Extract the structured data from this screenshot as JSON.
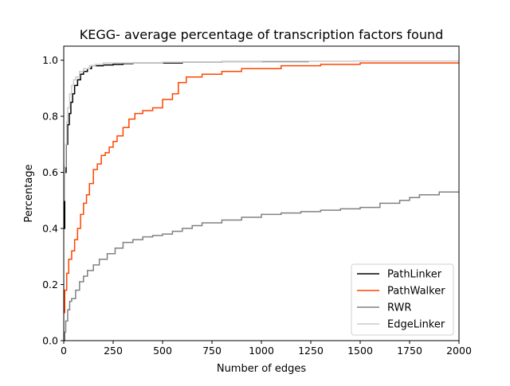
{
  "chart_data": {
    "type": "line",
    "title": "KEGG- average percentage of transcription factors found",
    "xlabel": "Number of edges",
    "ylabel": "Percentage",
    "xlim": [
      0,
      2000
    ],
    "ylim": [
      0,
      1.05
    ],
    "xticks": [
      0,
      250,
      500,
      750,
      1000,
      1250,
      1500,
      1750,
      2000
    ],
    "xtick_labels": [
      "0",
      "250",
      "500",
      "750",
      "1000",
      "1250",
      "1500",
      "1750",
      "2000"
    ],
    "yticks": [
      0.0,
      0.2,
      0.4,
      0.6,
      0.8,
      1.0
    ],
    "ytick_labels": [
      "0.0",
      "0.2",
      "0.4",
      "0.6",
      "0.8",
      "1.0"
    ],
    "grid": false,
    "legend_position": "lower-right",
    "series": [
      {
        "name": "PathLinker",
        "color": "#000000",
        "x": [
          0,
          5,
          12,
          20,
          28,
          36,
          45,
          55,
          70,
          85,
          100,
          120,
          140,
          160,
          200,
          250,
          300,
          350,
          450,
          600,
          800,
          1000,
          1240
        ],
        "y": [
          0.4,
          0.6,
          0.7,
          0.77,
          0.81,
          0.85,
          0.88,
          0.91,
          0.93,
          0.95,
          0.96,
          0.97,
          0.98,
          0.98,
          0.983,
          0.985,
          0.988,
          0.99,
          0.99,
          0.993,
          0.995,
          0.995,
          0.995
        ]
      },
      {
        "name": "PathWalker",
        "color": "#ff4500",
        "x": [
          0,
          5,
          15,
          25,
          40,
          55,
          70,
          85,
          100,
          115,
          130,
          150,
          170,
          190,
          210,
          230,
          250,
          270,
          300,
          330,
          360,
          400,
          450,
          500,
          550,
          580,
          620,
          700,
          800,
          900,
          1000,
          1100,
          1200,
          1300,
          1500,
          1700,
          2000
        ],
        "y": [
          0.1,
          0.18,
          0.24,
          0.29,
          0.32,
          0.36,
          0.4,
          0.45,
          0.49,
          0.52,
          0.56,
          0.61,
          0.63,
          0.66,
          0.67,
          0.69,
          0.71,
          0.73,
          0.76,
          0.79,
          0.81,
          0.82,
          0.83,
          0.86,
          0.88,
          0.92,
          0.94,
          0.95,
          0.96,
          0.97,
          0.97,
          0.98,
          0.98,
          0.985,
          0.99,
          0.99,
          0.99
        ]
      },
      {
        "name": "RWR",
        "color": "#808080",
        "x": [
          0,
          5,
          10,
          20,
          30,
          40,
          60,
          80,
          100,
          120,
          150,
          180,
          220,
          260,
          300,
          350,
          400,
          450,
          500,
          550,
          600,
          650,
          700,
          750,
          800,
          900,
          1000,
          1100,
          1200,
          1300,
          1400,
          1500,
          1600,
          1700,
          1750,
          1800,
          1900,
          2000
        ],
        "y": [
          0.0,
          0.03,
          0.07,
          0.11,
          0.14,
          0.15,
          0.18,
          0.21,
          0.23,
          0.25,
          0.27,
          0.29,
          0.31,
          0.33,
          0.35,
          0.36,
          0.37,
          0.375,
          0.38,
          0.39,
          0.4,
          0.41,
          0.42,
          0.42,
          0.43,
          0.44,
          0.45,
          0.455,
          0.46,
          0.465,
          0.47,
          0.475,
          0.49,
          0.5,
          0.51,
          0.52,
          0.53,
          0.53
        ]
      },
      {
        "name": "EdgeLinker",
        "color": "#cccccc",
        "x": [
          0,
          5,
          10,
          15,
          20,
          30,
          40,
          50,
          60,
          80,
          100,
          130,
          160,
          200,
          300,
          500,
          800,
          1000,
          1200,
          1470,
          2000
        ],
        "y": [
          0.5,
          0.62,
          0.7,
          0.78,
          0.83,
          0.88,
          0.91,
          0.93,
          0.94,
          0.96,
          0.97,
          0.98,
          0.985,
          0.99,
          0.99,
          0.993,
          0.995,
          0.996,
          0.996,
          0.997,
          0.997
        ]
      }
    ]
  }
}
